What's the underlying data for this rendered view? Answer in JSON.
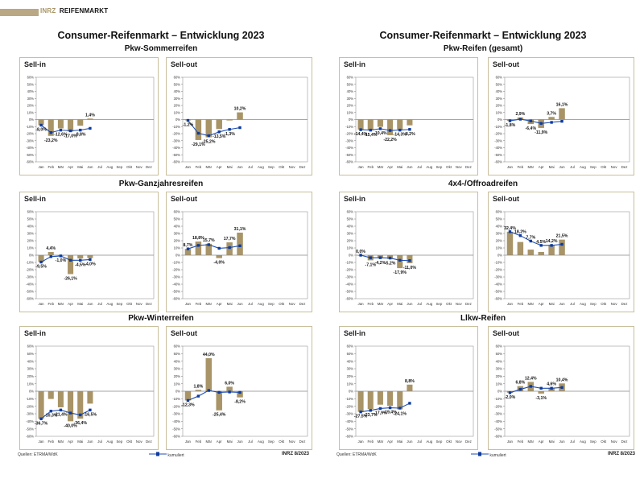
{
  "brand": {
    "logo": "INRZ",
    "name": "REIFENMARKT"
  },
  "colors": {
    "bar": "#a89467",
    "line": "#1f4eb0",
    "marker": "#0d3b9e",
    "zero": "#888888",
    "frame": "#c8bf9c"
  },
  "months": [
    "Jan",
    "Feb",
    "Mär",
    "Apr",
    "Mai",
    "Jun",
    "Jul",
    "Aug",
    "Sep",
    "Okt",
    "Nov",
    "Dez"
  ],
  "yticks": [
    "60%",
    "50%",
    "40%",
    "30%",
    "20%",
    "10%",
    "0%",
    "-10%",
    "-20%",
    "-30%",
    "-40%",
    "-50%",
    "-60%"
  ],
  "pages": [
    {
      "title": "Consumer-Reifenmarkt – Entwicklung 2023",
      "footer": {
        "source": "Quellen: ETRMA/WdK",
        "legend": "kumuliert",
        "logo": "INRZ 8/2023"
      },
      "sections": [
        {
          "name": "Pkw-Sommerreifen"
        },
        {
          "name": "Pkw-Ganzjahresreifen"
        },
        {
          "name": "Pkw-Winterreifen"
        }
      ]
    },
    {
      "title": "Consumer-Reifenmarkt – Entwicklung 2023",
      "footer": {
        "source": "Quellen: ETRMA/WdK",
        "legend": "kumuliert",
        "logo": "INRZ 8/2023"
      },
      "sections": [
        {
          "name": "Pkw-Reifen (gesamt)"
        },
        {
          "name": "4x4-/Offroadreifen"
        },
        {
          "name": "Llkw-Reifen"
        }
      ]
    }
  ],
  "chart_data": [
    {
      "id": "sommer-sellin",
      "type": "bar",
      "section": "Pkw-Sommerreifen",
      "title": "Sell-in",
      "categories": [
        "Jan",
        "Feb",
        "Mär",
        "Apr",
        "Mai",
        "Jun",
        "Jul",
        "Aug",
        "Sep",
        "Okt",
        "Nov",
        "Dez"
      ],
      "ylim": [
        -60,
        60
      ],
      "series": [
        {
          "name": "monatlich",
          "values": [
            -8.0,
            -23.2,
            -12.6,
            -17.0,
            -8.8,
            1.4
          ],
          "labels": [
            "-8,0%",
            "-23,2%",
            "-12,6%",
            "-17,0%",
            "-8,8%",
            "1,4%"
          ]
        },
        {
          "name": "kumuliert",
          "values": [
            -8.0,
            -18.5,
            -15.0,
            -16.0,
            -15.0,
            -12.5
          ]
        }
      ]
    },
    {
      "id": "sommer-sellout",
      "type": "bar",
      "section": "Pkw-Sommerreifen",
      "title": "Sell-out",
      "categories": [
        "Jan",
        "Feb",
        "Mär",
        "Apr",
        "Mai",
        "Jun",
        "Jul",
        "Aug",
        "Sep",
        "Okt",
        "Nov",
        "Dez"
      ],
      "ylim": [
        -60,
        60
      ],
      "series": [
        {
          "name": "monatlich",
          "values": [
            -1.2,
            -29.1,
            -25.2,
            -13.5,
            -1.3,
            10.2
          ],
          "labels": [
            "-1,2%",
            "-29,1%",
            "-25,2%",
            "-13,5%",
            "-1,3%",
            "10,2%"
          ]
        },
        {
          "name": "kumuliert",
          "values": [
            -1.2,
            -19.5,
            -23.0,
            -17.5,
            -14.0,
            -11.5
          ]
        }
      ]
    },
    {
      "id": "ganzjahr-sellin",
      "type": "bar",
      "section": "Pkw-Ganzjahresreifen",
      "title": "Sell-in",
      "categories": [
        "Jan",
        "Feb",
        "Mär",
        "Apr",
        "Mai",
        "Jun",
        "Jul",
        "Aug",
        "Sep",
        "Okt",
        "Nov",
        "Dez"
      ],
      "ylim": [
        -60,
        60
      ],
      "series": [
        {
          "name": "monatlich",
          "values": [
            -9.5,
            4.4,
            -1.0,
            -26.1,
            -4.5,
            -4.0
          ],
          "labels": [
            "-9,5%",
            "4,4%",
            "-1,0%",
            "-26,1%",
            "-4,5%",
            "-4,0%"
          ]
        },
        {
          "name": "kumuliert",
          "values": [
            -9.5,
            -2.0,
            -1.0,
            -7.0,
            -7.0,
            -6.0
          ]
        }
      ]
    },
    {
      "id": "ganzjahr-sellout",
      "type": "bar",
      "section": "Pkw-Ganzjahresreifen",
      "title": "Sell-out",
      "categories": [
        "Jan",
        "Feb",
        "Mär",
        "Apr",
        "Mai",
        "Jun",
        "Jul",
        "Aug",
        "Sep",
        "Okt",
        "Nov",
        "Dez"
      ],
      "ylim": [
        -60,
        60
      ],
      "series": [
        {
          "name": "monatlich",
          "values": [
            8.7,
            18.8,
            15.7,
            -4.0,
            17.7,
            31.1
          ],
          "labels": [
            "8,7%",
            "18,8%",
            "15,7%",
            "-4,0%",
            "17,7%",
            "31,1%"
          ]
        },
        {
          "name": "kumuliert",
          "values": [
            8.7,
            13.5,
            14.5,
            9.5,
            10.5,
            13.0
          ]
        }
      ]
    },
    {
      "id": "winter-sellin",
      "type": "bar",
      "section": "Pkw-Winterreifen",
      "title": "Sell-in",
      "categories": [
        "Jan",
        "Feb",
        "Mär",
        "Apr",
        "Mai",
        "Jun",
        "Jul",
        "Aug",
        "Sep",
        "Okt",
        "Nov",
        "Dez"
      ],
      "ylim": [
        -60,
        60
      ],
      "series": [
        {
          "name": "monatlich",
          "values": [
            -36.7,
            -10.3,
            -21.4,
            -40.0,
            -36.4,
            -16.5
          ],
          "labels": [
            "-36,7%",
            "-10,3%",
            "-21,4%",
            "-40,0%",
            "-36,4%",
            "-16,5%"
          ]
        },
        {
          "name": "kumuliert",
          "values": [
            -36.7,
            -26.5,
            -25.0,
            -29.0,
            -31.5,
            -25.0
          ]
        }
      ]
    },
    {
      "id": "winter-sellout",
      "type": "bar",
      "section": "Pkw-Winterreifen",
      "title": "Sell-out",
      "categories": [
        "Jan",
        "Feb",
        "Mär",
        "Apr",
        "Mai",
        "Jun",
        "Jul",
        "Aug",
        "Sep",
        "Okt",
        "Nov",
        "Dez"
      ],
      "ylim": [
        -60,
        60
      ],
      "series": [
        {
          "name": "monatlich",
          "values": [
            -12.3,
            1.8,
            44.0,
            -25.4,
            6.0,
            -8.2
          ],
          "labels": [
            "-12,3%",
            "1,8%",
            "44,0%",
            "-25,4%",
            "6,0%",
            "-8,2%"
          ]
        },
        {
          "name": "kumuliert",
          "values": [
            -12.3,
            -6.5,
            1.0,
            -1.5,
            -1.0,
            -1.5
          ]
        }
      ]
    },
    {
      "id": "gesamt-sellin",
      "type": "bar",
      "section": "Pkw-Reifen (gesamt)",
      "title": "Sell-in",
      "categories": [
        "Jan",
        "Feb",
        "Mär",
        "Apr",
        "Mai",
        "Jun",
        "Jul",
        "Aug",
        "Sep",
        "Okt",
        "Nov",
        "Dez"
      ],
      "ylim": [
        -60,
        60
      ],
      "series": [
        {
          "name": "monatlich",
          "values": [
            -14.4,
            -15.4,
            -10.4,
            -22.2,
            -14.3,
            -8.2
          ],
          "labels": [
            "-14,4%",
            "-15,4%",
            "-10,4%",
            "-22,2%",
            "-14,3%",
            "-8,2%"
          ]
        },
        {
          "name": "kumuliert",
          "values": [
            -14.4,
            -15.0,
            -13.0,
            -15.5,
            -15.0,
            -14.0
          ]
        }
      ]
    },
    {
      "id": "gesamt-sellout",
      "type": "bar",
      "section": "Pkw-Reifen (gesamt)",
      "title": "Sell-out",
      "categories": [
        "Jan",
        "Feb",
        "Mär",
        "Apr",
        "Mai",
        "Jun",
        "Jul",
        "Aug",
        "Sep",
        "Okt",
        "Nov",
        "Dez"
      ],
      "ylim": [
        -60,
        60
      ],
      "series": [
        {
          "name": "monatlich",
          "values": [
            -1.8,
            2.9,
            -6.4,
            -11.9,
            3.7,
            16.1
          ],
          "labels": [
            "-1,8%",
            "2,9%",
            "-6,4%",
            "-11,9%",
            "3,7%",
            "16,1%"
          ]
        },
        {
          "name": "kumuliert",
          "values": [
            -1.8,
            0.5,
            -2.0,
            -5.5,
            -4.0,
            -2.5
          ]
        }
      ]
    },
    {
      "id": "offroad-sellin",
      "type": "bar",
      "section": "4x4-/Offroadreifen",
      "title": "Sell-in",
      "categories": [
        "Jan",
        "Feb",
        "Mär",
        "Apr",
        "Mai",
        "Jun",
        "Jul",
        "Aug",
        "Sep",
        "Okt",
        "Nov",
        "Dez"
      ],
      "ylim": [
        -60,
        60
      ],
      "series": [
        {
          "name": "monatlich",
          "values": [
            0.0,
            -7.1,
            -4.2,
            -5.2,
            -17.9,
            -11.0
          ],
          "labels": [
            "0,0%",
            "-7,1%",
            "-4,2%",
            "-5,2%",
            "-17,9%",
            "-11,0%"
          ]
        },
        {
          "name": "kumuliert",
          "values": [
            0.0,
            -3.5,
            -3.5,
            -4.0,
            -7.0,
            -7.5
          ]
        }
      ]
    },
    {
      "id": "offroad-sellout",
      "type": "bar",
      "section": "4x4-/Offroadreifen",
      "title": "Sell-out",
      "categories": [
        "Jan",
        "Feb",
        "Mär",
        "Apr",
        "Mai",
        "Jun",
        "Jul",
        "Aug",
        "Sep",
        "Okt",
        "Nov",
        "Dez"
      ],
      "ylim": [
        -60,
        60
      ],
      "series": [
        {
          "name": "monatlich",
          "values": [
            32.4,
            18.2,
            7.7,
            4.5,
            14.2,
            21.5
          ],
          "labels": [
            "32,4%",
            "18,2%",
            "7,7%",
            "4,5%",
            "14,2%",
            "21,5%"
          ]
        },
        {
          "name": "kumuliert",
          "values": [
            32.4,
            27.0,
            19.5,
            13.5,
            13.5,
            15.0
          ]
        }
      ]
    },
    {
      "id": "llkw-sellin",
      "type": "bar",
      "section": "Llkw-Reifen",
      "title": "Sell-in",
      "categories": [
        "Jan",
        "Feb",
        "Mär",
        "Apr",
        "Mai",
        "Jun",
        "Jul",
        "Aug",
        "Sep",
        "Okt",
        "Nov",
        "Dez"
      ],
      "ylim": [
        -60,
        60
      ],
      "series": [
        {
          "name": "monatlich",
          "values": [
            -27.5,
            -23.7,
            -17.9,
            -19.4,
            -24.1,
            8.8
          ],
          "labels": [
            "-27,5%",
            "-23,7%",
            "-17,9%",
            "-19,4%",
            "-24,1%",
            "8,8%"
          ]
        },
        {
          "name": "kumuliert",
          "values": [
            -27.5,
            -25.5,
            -23.0,
            -22.0,
            -22.5,
            -16.0
          ]
        }
      ]
    },
    {
      "id": "llkw-sellout",
      "type": "bar",
      "section": "Llkw-Reifen",
      "title": "Sell-out",
      "categories": [
        "Jan",
        "Feb",
        "Mär",
        "Apr",
        "Mai",
        "Jun",
        "Jul",
        "Aug",
        "Sep",
        "Okt",
        "Nov",
        "Dez"
      ],
      "ylim": [
        -60,
        60
      ],
      "series": [
        {
          "name": "monatlich",
          "values": [
            -2.0,
            6.8,
            12.4,
            -3.1,
            4.6,
            10.4
          ],
          "labels": [
            "-2,0%",
            "6,8%",
            "12,4%",
            "-3,1%",
            "4,6%",
            "10,4%"
          ]
        },
        {
          "name": "kumuliert",
          "values": [
            -2.0,
            2.5,
            6.5,
            4.0,
            4.0,
            5.0
          ]
        }
      ]
    }
  ]
}
